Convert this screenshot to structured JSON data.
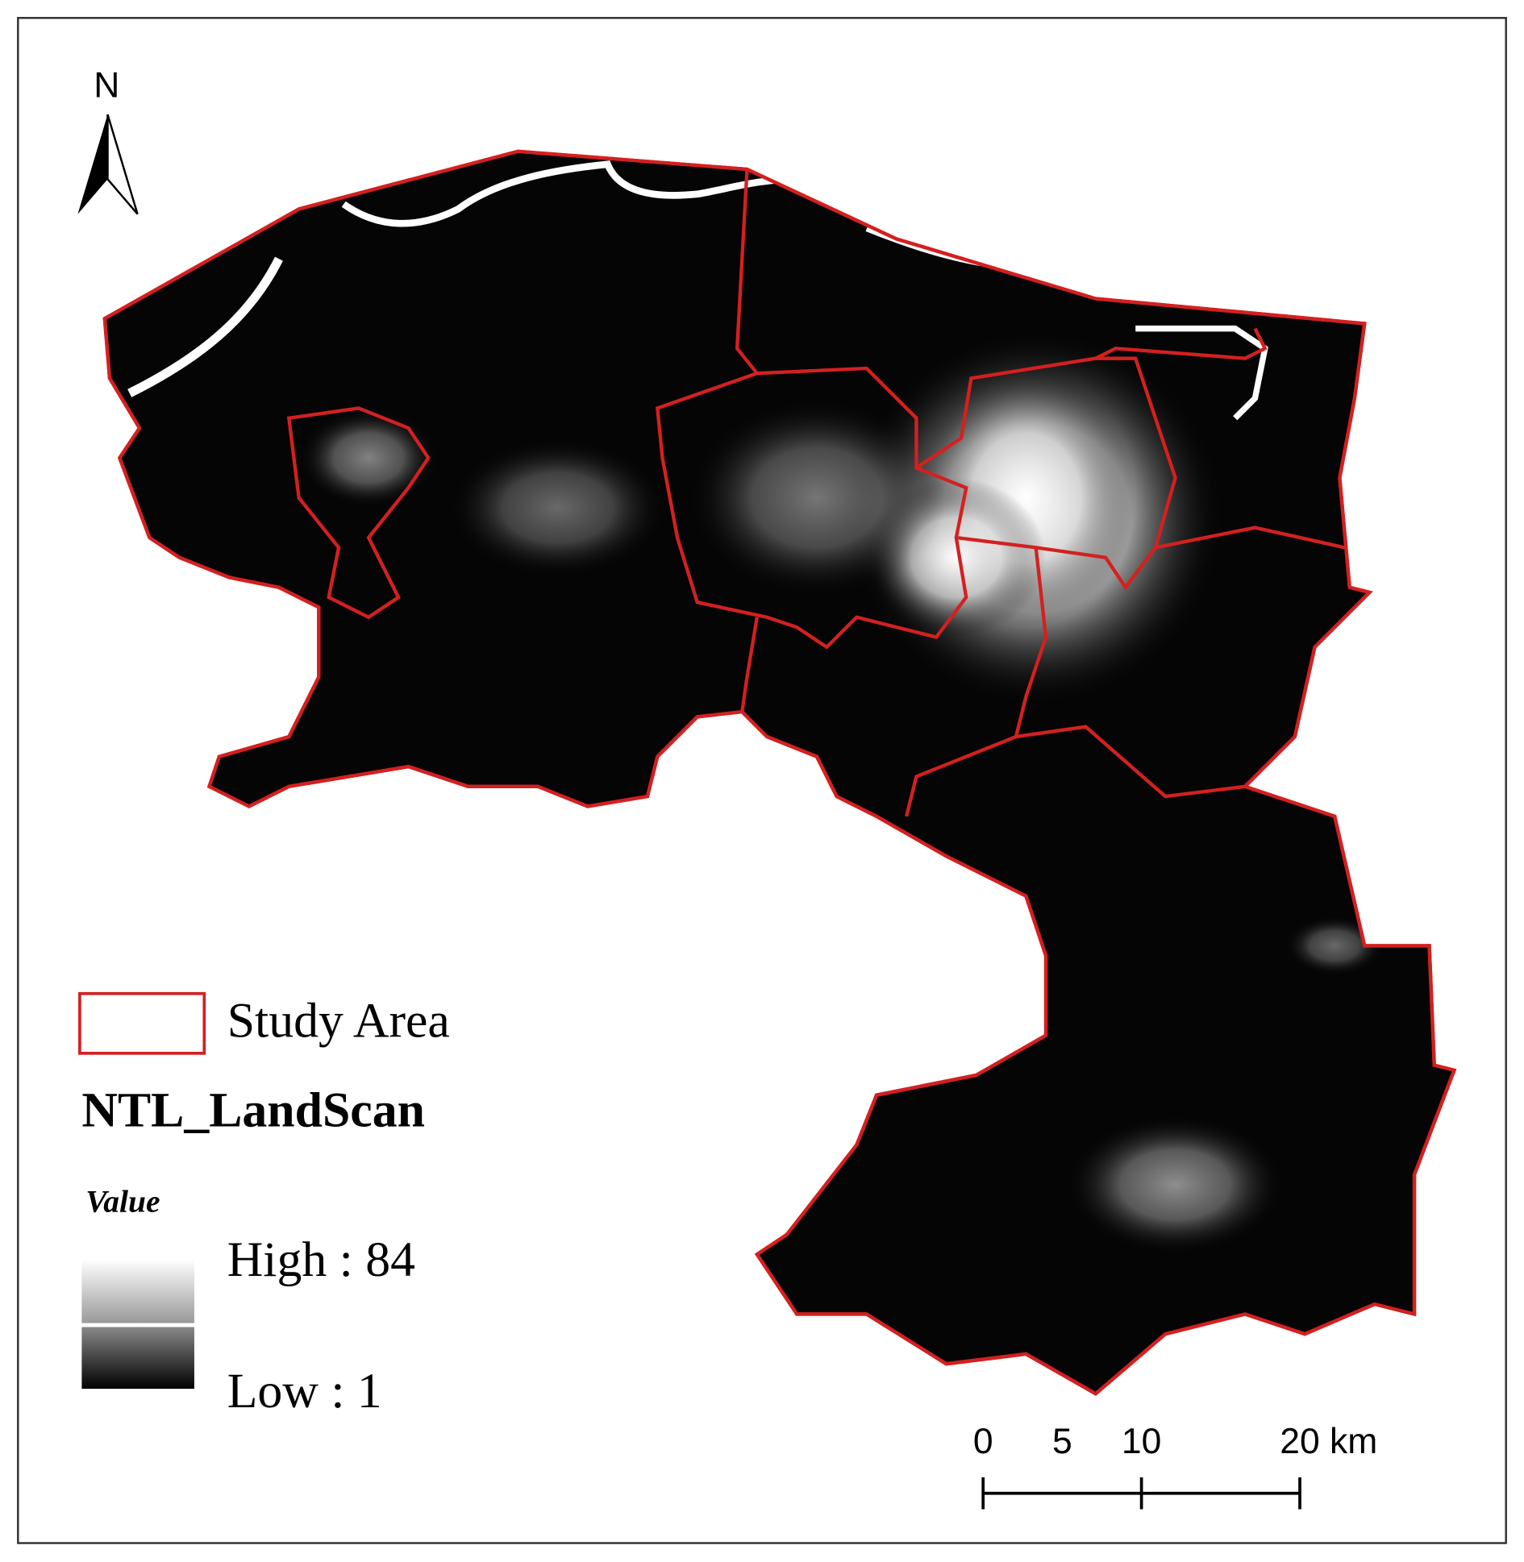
{
  "map": {
    "north_arrow": "N",
    "legend": {
      "boundary_label": "Study Area",
      "layer_title": "NTL_LandScan",
      "field": "Value",
      "high": "High : 84",
      "low": "Low : 1"
    },
    "scale_bar": {
      "ticks": [
        0,
        5,
        10,
        20
      ],
      "unit": "km"
    }
  }
}
